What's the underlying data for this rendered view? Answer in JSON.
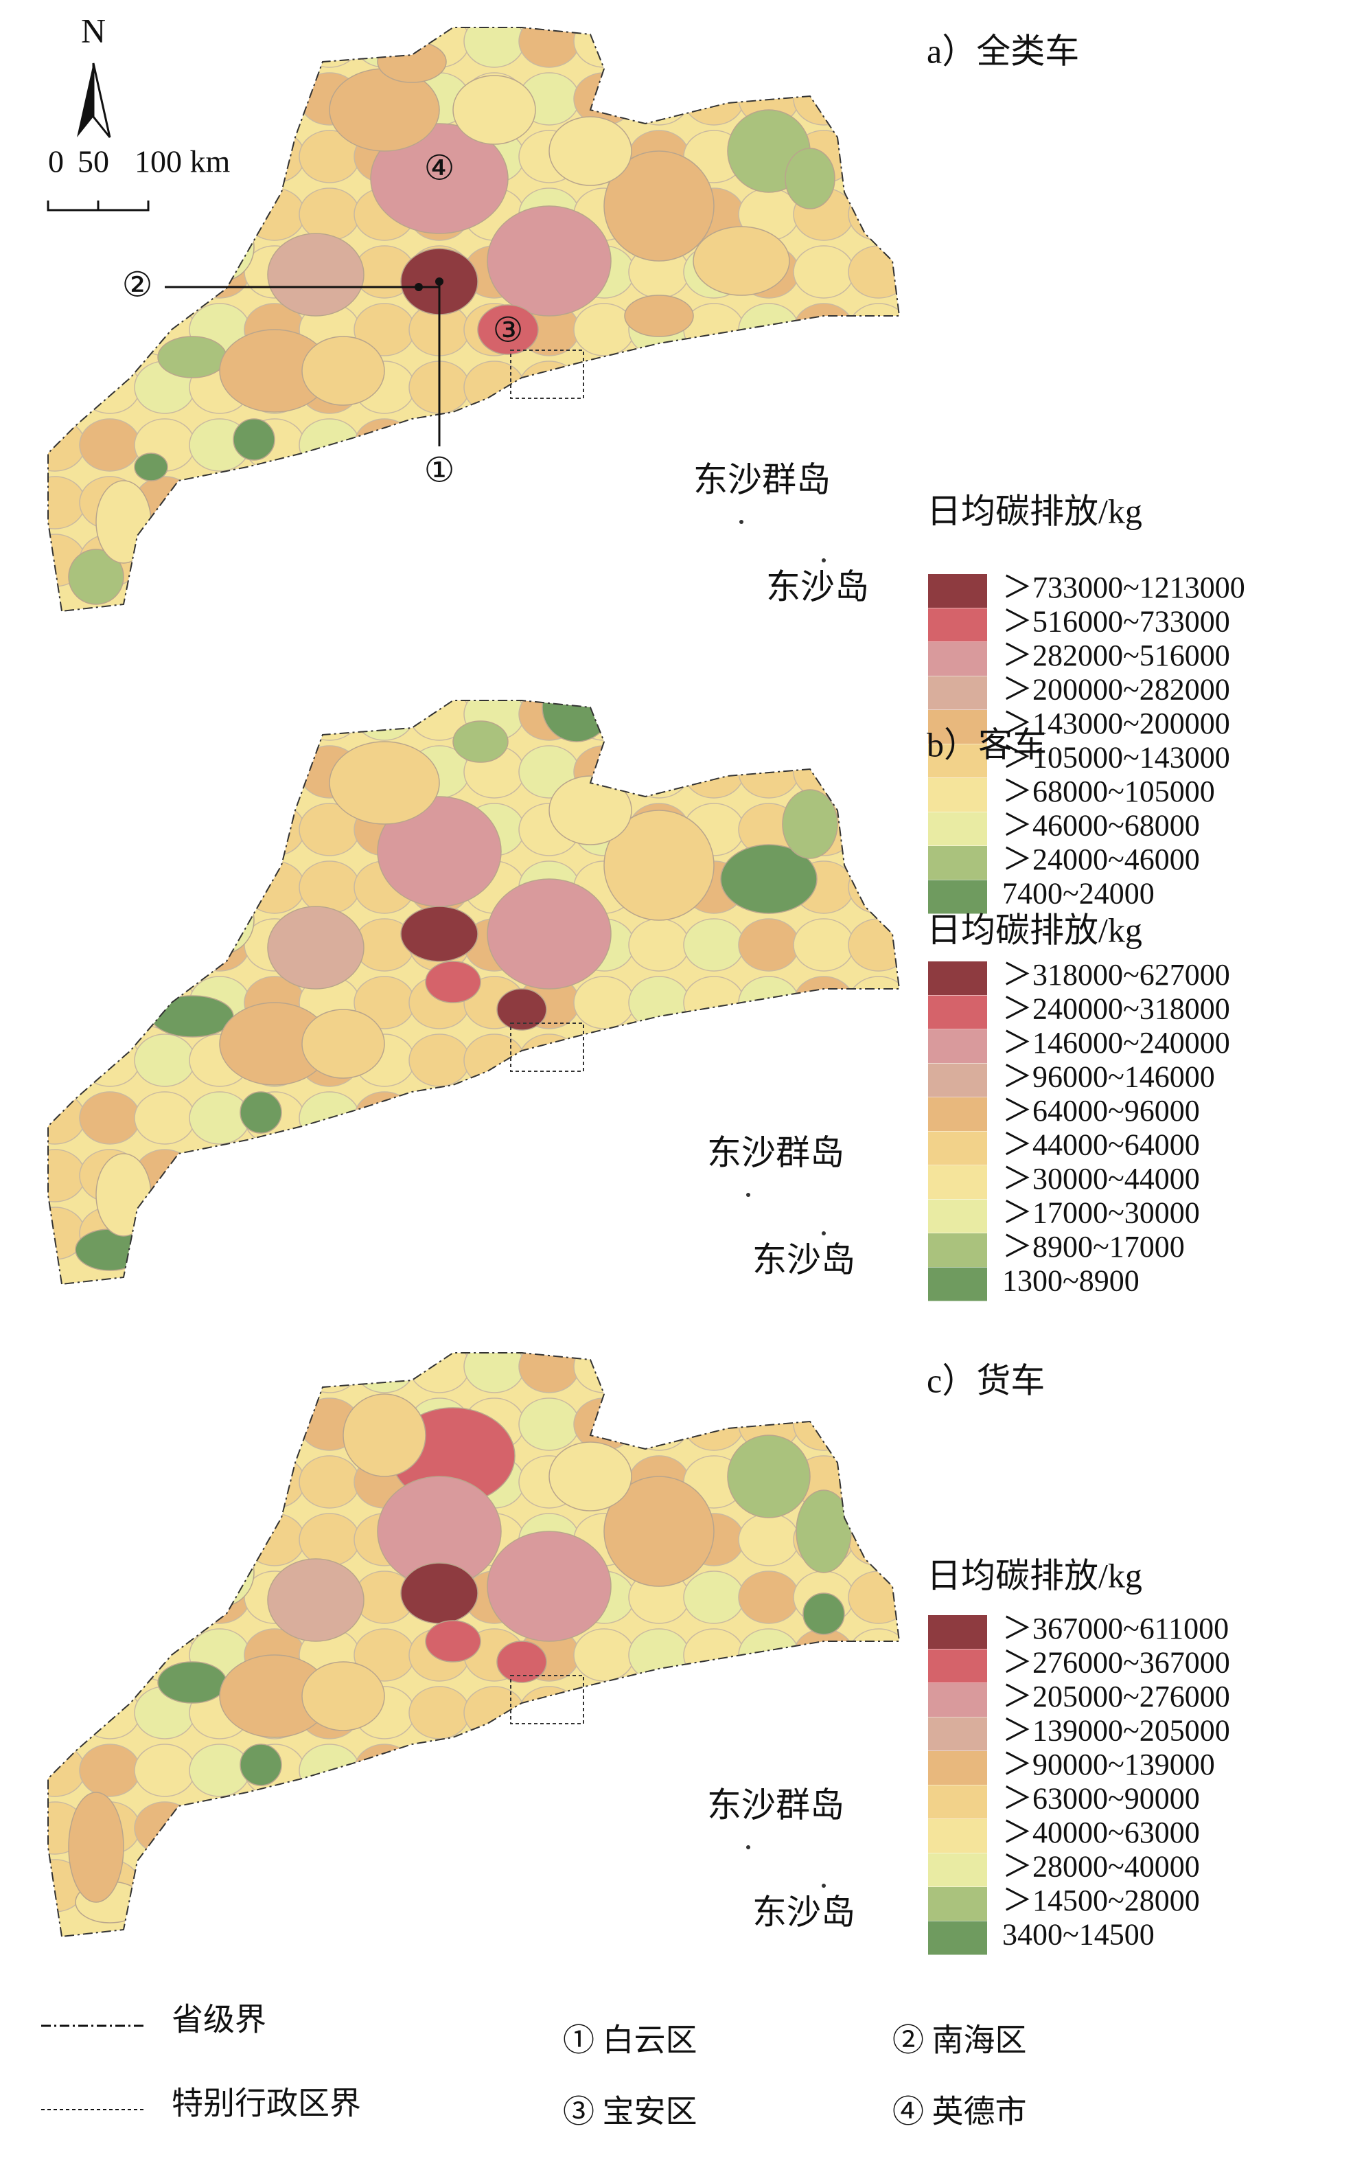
{
  "north_arrow": "N",
  "scale_bar": {
    "ticks": [
      "0",
      "50",
      "100 km"
    ]
  },
  "markers": [
    "①",
    "②",
    "③",
    "④"
  ],
  "panels": [
    {
      "title": "a）全类车",
      "legend_title": "日均碳排放/kg",
      "island_group": "东沙群岛",
      "island": "东沙岛",
      "classes": [
        {
          "label": "＞733000~1213000",
          "color": "#8e3b40"
        },
        {
          "label": "＞516000~733000",
          "color": "#d5636a"
        },
        {
          "label": "＞282000~516000",
          "color": "#d99a9c"
        },
        {
          "label": "＞200000~282000",
          "color": "#d9ae9c"
        },
        {
          "label": "＞143000~200000",
          "color": "#e8b87d"
        },
        {
          "label": "＞105000~143000",
          "color": "#f2d28a"
        },
        {
          "label": "＞68000~105000",
          "color": "#f5e49b"
        },
        {
          "label": "＞46000~68000",
          "color": "#e9eba3"
        },
        {
          "label": "＞24000~46000",
          "color": "#aac27d"
        },
        {
          "label": "7400~24000",
          "color": "#6f9b5f"
        }
      ]
    },
    {
      "title": "b）客车",
      "legend_title": "日均碳排放/kg",
      "island_group": "东沙群岛",
      "island": "东沙岛",
      "classes": [
        {
          "label": "＞318000~627000",
          "color": "#8e3b40"
        },
        {
          "label": "＞240000~318000",
          "color": "#d5636a"
        },
        {
          "label": "＞146000~240000",
          "color": "#d99a9c"
        },
        {
          "label": "＞96000~146000",
          "color": "#d9ae9c"
        },
        {
          "label": "＞64000~96000",
          "color": "#e8b87d"
        },
        {
          "label": "＞44000~64000",
          "color": "#f2d28a"
        },
        {
          "label": "＞30000~44000",
          "color": "#f5e49b"
        },
        {
          "label": "＞17000~30000",
          "color": "#e9eba3"
        },
        {
          "label": "＞8900~17000",
          "color": "#aac27d"
        },
        {
          "label": "1300~8900",
          "color": "#6f9b5f"
        }
      ]
    },
    {
      "title": "c）货车",
      "legend_title": "日均碳排放/kg",
      "island_group": "东沙群岛",
      "island": "东沙岛",
      "classes": [
        {
          "label": "＞367000~611000",
          "color": "#8e3b40"
        },
        {
          "label": "＞276000~367000",
          "color": "#d5636a"
        },
        {
          "label": "＞205000~276000",
          "color": "#d99a9c"
        },
        {
          "label": "＞139000~205000",
          "color": "#d9ae9c"
        },
        {
          "label": "＞90000~139000",
          "color": "#e8b87d"
        },
        {
          "label": "＞63000~90000",
          "color": "#f2d28a"
        },
        {
          "label": "＞40000~63000",
          "color": "#f5e49b"
        },
        {
          "label": "＞28000~40000",
          "color": "#e9eba3"
        },
        {
          "label": "＞14500~28000",
          "color": "#aac27d"
        },
        {
          "label": "3400~14500",
          "color": "#6f9b5f"
        }
      ]
    }
  ],
  "footer": {
    "boundaries": [
      "省级界",
      "特别行政区界"
    ],
    "districts": [
      "① 白云区",
      "② 南海区",
      "③ 宝安区",
      "④ 英德市"
    ]
  }
}
